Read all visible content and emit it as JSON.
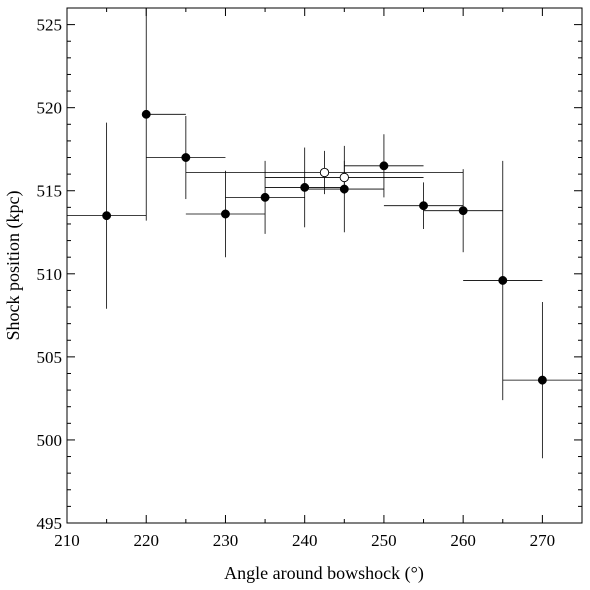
{
  "chart_data": {
    "type": "scatter",
    "xlabel": "Angle around bowshock (°)",
    "ylabel": "Shock position (kpc)",
    "xlim": [
      210,
      275
    ],
    "ylim": [
      495,
      526
    ],
    "xticks": [
      210,
      220,
      230,
      240,
      250,
      260,
      270
    ],
    "yticks": [
      495,
      500,
      505,
      510,
      515,
      520,
      525
    ],
    "grid": false,
    "series": [
      {
        "marker": "filled-circle",
        "color": "#000000",
        "points": [
          {
            "x": 215,
            "y": 513.5,
            "xerr": [
              5,
              5
            ],
            "yerr": [
              5.6,
              5.6
            ]
          },
          {
            "x": 220,
            "y": 519.6,
            "xerr": [
              0,
              5
            ],
            "yerr": [
              6.4,
              6.4
            ]
          },
          {
            "x": 225,
            "y": 517.0,
            "xerr": [
              5,
              5
            ],
            "yerr": [
              2.5,
              2.5
            ]
          },
          {
            "x": 230,
            "y": 513.6,
            "xerr": [
              5,
              5
            ],
            "yerr": [
              2.6,
              2.6
            ]
          },
          {
            "x": 235,
            "y": 514.6,
            "xerr": [
              5,
              5
            ],
            "yerr": [
              2.2,
              2.2
            ]
          },
          {
            "x": 240,
            "y": 515.2,
            "xerr": [
              5,
              5
            ],
            "yerr": [
              2.4,
              2.4
            ]
          },
          {
            "x": 245,
            "y": 515.1,
            "xerr": [
              5,
              5
            ],
            "yerr": [
              2.6,
              2.6
            ]
          },
          {
            "x": 250,
            "y": 516.5,
            "xerr": [
              5,
              5
            ],
            "yerr": [
              1.9,
              1.9
            ]
          },
          {
            "x": 255,
            "y": 514.1,
            "xerr": [
              5,
              5
            ],
            "yerr": [
              1.4,
              1.4
            ]
          },
          {
            "x": 260,
            "y": 513.8,
            "xerr": [
              5,
              5
            ],
            "yerr": [
              2.5,
              2.5
            ]
          },
          {
            "x": 265,
            "y": 509.6,
            "xerr": [
              5,
              5
            ],
            "yerr": [
              7.2,
              7.2
            ]
          },
          {
            "x": 270,
            "y": 503.6,
            "xerr": [
              5,
              5
            ],
            "yerr": [
              4.7,
              4.7
            ]
          }
        ]
      },
      {
        "marker": "open-circle",
        "color": "#000000",
        "points": [
          {
            "x": 242.5,
            "y": 516.1,
            "xerr": [
              17.5,
              17.5
            ],
            "yerr": [
              1.3,
              1.3
            ]
          },
          {
            "x": 245.0,
            "y": 515.8,
            "xerr": [
              10,
              10
            ],
            "yerr": [
              1.0,
              1.0
            ]
          }
        ]
      }
    ]
  }
}
